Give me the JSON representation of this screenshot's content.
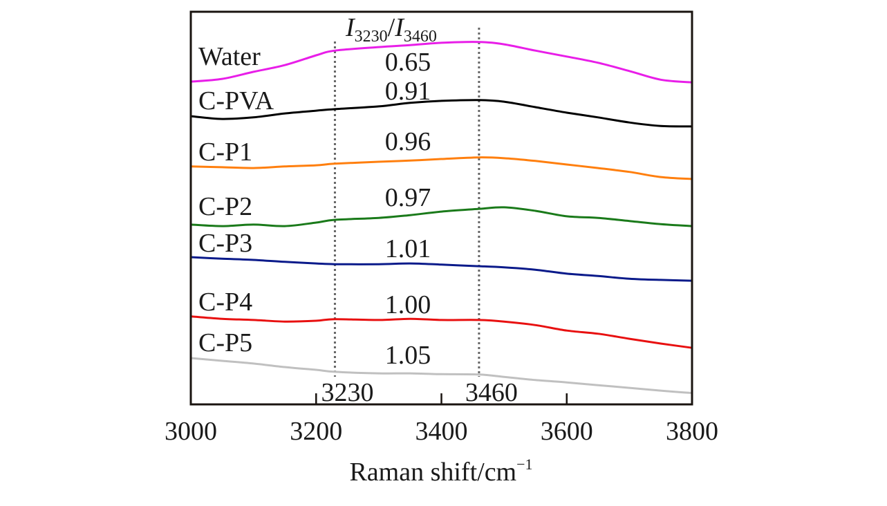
{
  "chart_data": {
    "type": "line",
    "title": "",
    "xlabel": "Raman shift/cm",
    "xlabel_superscript": "−1",
    "ylabel": "",
    "xlim": [
      3000,
      3800
    ],
    "ylim": [
      0,
      100
    ],
    "y_units": "relative intensity (a.u., stacked/offset spectra, no y-axis ticks shown)",
    "grid": false,
    "legend": "none (series labels placed inline at left)",
    "x_ticks": [
      3000,
      3200,
      3400,
      3600,
      3800
    ],
    "x_tick_labels": [
      "3000",
      "3200",
      "3400",
      "3600",
      "3800"
    ],
    "reference_lines": [
      {
        "x": 3230,
        "label": "3230",
        "style": "dotted",
        "color": "#666666"
      },
      {
        "x": 3460,
        "label": "3460",
        "style": "dotted",
        "color": "#666666"
      }
    ],
    "ratio_header": {
      "prefix": "I",
      "sub1": "3230",
      "sep": "/",
      "prefix2": "I",
      "sub2": "3460"
    },
    "x": [
      3000,
      3050,
      3100,
      3150,
      3200,
      3230,
      3300,
      3350,
      3400,
      3460,
      3500,
      3550,
      3600,
      3650,
      3700,
      3750,
      3800
    ],
    "series": [
      {
        "name": "Water",
        "color": "#e81ee8",
        "ratio": "0.65",
        "values": [
          82.2,
          82.9,
          84.7,
          86.4,
          88.9,
          90.1,
          91.0,
          91.5,
          92.1,
          92.3,
          91.7,
          90.1,
          88.6,
          87.0,
          84.9,
          82.7,
          82.0
        ]
      },
      {
        "name": "C-PVA",
        "color": "#000000",
        "ratio": "0.91",
        "values": [
          73.4,
          72.7,
          73.1,
          74.1,
          74.8,
          75.2,
          75.9,
          76.8,
          77.3,
          77.5,
          77.1,
          75.7,
          74.3,
          73.1,
          71.8,
          70.9,
          70.8
        ]
      },
      {
        "name": "C-P1",
        "color": "#ff7f0e",
        "ratio": "0.96",
        "values": [
          60.6,
          60.4,
          60.2,
          60.6,
          60.9,
          61.3,
          61.8,
          62.1,
          62.5,
          62.9,
          62.7,
          62.0,
          61.1,
          60.2,
          59.2,
          57.9,
          57.4
        ]
      },
      {
        "name": "C-P2",
        "color": "#1a7a1a",
        "ratio": "0.97",
        "values": [
          45.8,
          45.4,
          45.8,
          45.4,
          46.3,
          47.0,
          47.5,
          48.2,
          49.1,
          49.8,
          50.2,
          49.3,
          47.9,
          47.5,
          46.7,
          45.9,
          45.4
        ]
      },
      {
        "name": "C-P3",
        "color": "#0a1a8a",
        "ratio": "1.01",
        "values": [
          37.5,
          37.1,
          36.8,
          36.3,
          35.9,
          35.7,
          35.7,
          35.9,
          35.6,
          35.2,
          34.9,
          34.3,
          33.3,
          32.7,
          32.0,
          31.7,
          31.5
        ]
      },
      {
        "name": "C-P4",
        "color": "#e81010",
        "ratio": "1.00",
        "values": [
          22.4,
          21.8,
          21.5,
          21.1,
          21.3,
          21.7,
          21.5,
          21.8,
          21.5,
          21.5,
          21.1,
          20.2,
          18.8,
          18.0,
          16.7,
          15.5,
          14.4
        ]
      },
      {
        "name": "C-P5",
        "color": "#c0c0c0",
        "ratio": "1.05",
        "values": [
          11.8,
          11.1,
          10.4,
          9.5,
          8.8,
          8.3,
          7.9,
          7.9,
          7.7,
          7.6,
          7.0,
          6.2,
          5.6,
          4.9,
          4.2,
          3.5,
          2.9
        ]
      }
    ]
  }
}
